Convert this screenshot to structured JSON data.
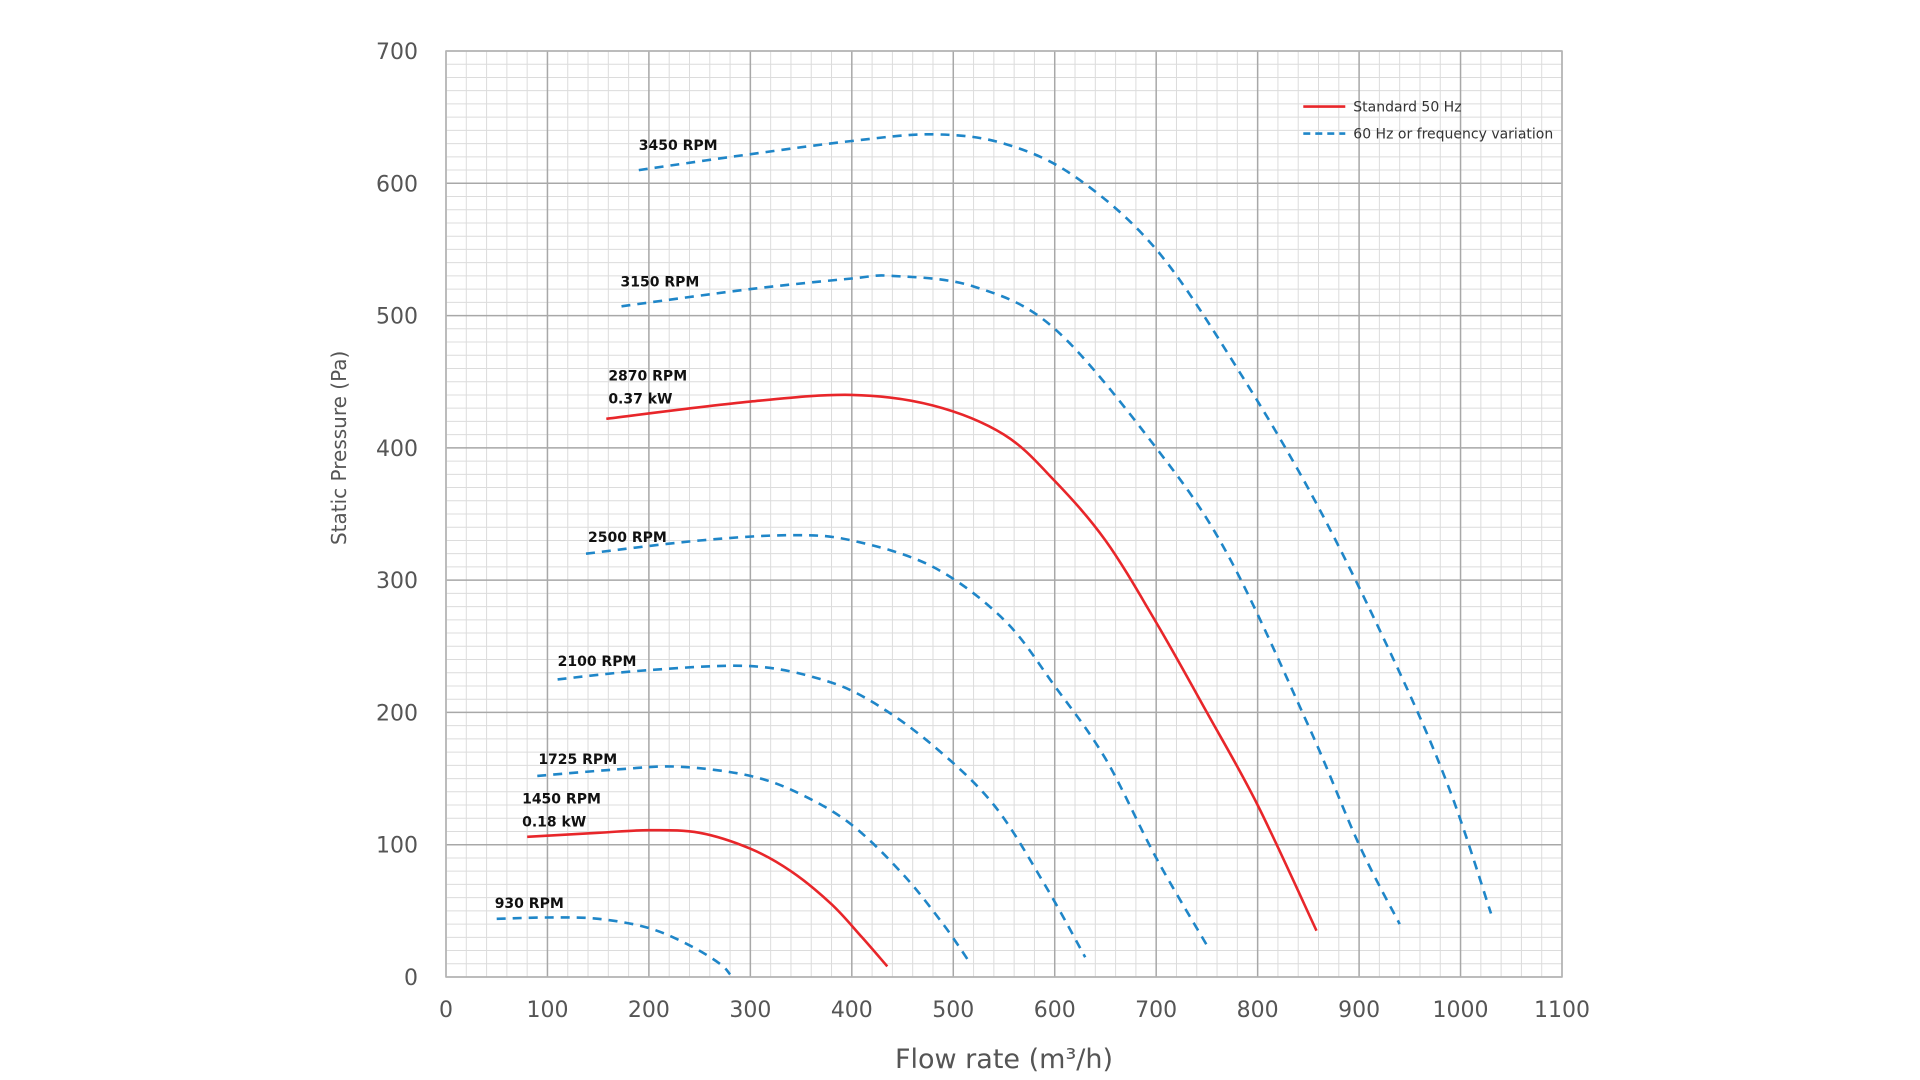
{
  "chart_data": {
    "type": "line",
    "xlabel": "Flow rate (m³/h)",
    "ylabel": "Static Pressure (Pa)",
    "xlim": [
      0,
      1100
    ],
    "ylim": [
      0,
      700
    ],
    "x_ticks": [
      "0",
      "100",
      "200",
      "300",
      "400",
      "500",
      "600",
      "700",
      "800",
      "900",
      "1000",
      "1100"
    ],
    "y_ticks": [
      "0",
      "100",
      "200",
      "300",
      "400",
      "500",
      "600",
      "700"
    ],
    "grid": true,
    "legend_position": "top-right",
    "legend": [
      {
        "label": "Standard 50 Hz",
        "style": "solid",
        "color": "#e8262a"
      },
      {
        "label": "60 Hz or frequency variation",
        "style": "dashed",
        "color": "#1f86c8"
      }
    ],
    "series": [
      {
        "name": "3450 RPM",
        "style": "dashed",
        "color": "#1f86c8",
        "points": [
          [
            190,
            610
          ],
          [
            300,
            622
          ],
          [
            400,
            632
          ],
          [
            480,
            637
          ],
          [
            550,
            630
          ],
          [
            620,
            605
          ],
          [
            700,
            550
          ],
          [
            780,
            460
          ],
          [
            860,
            355
          ],
          [
            940,
            230
          ],
          [
            990,
            140
          ],
          [
            1030,
            48
          ]
        ]
      },
      {
        "name": "3150 RPM",
        "style": "dashed",
        "color": "#1f86c8",
        "points": [
          [
            173,
            507
          ],
          [
            300,
            520
          ],
          [
            400,
            528
          ],
          [
            440,
            530
          ],
          [
            520,
            522
          ],
          [
            600,
            490
          ],
          [
            700,
            400
          ],
          [
            770,
            320
          ],
          [
            850,
            190
          ],
          [
            900,
            100
          ],
          [
            940,
            40
          ]
        ]
      },
      {
        "name": "2870 RPM",
        "style": "solid",
        "color": "#e8262a",
        "points": [
          [
            158,
            422
          ],
          [
            300,
            435
          ],
          [
            400,
            440
          ],
          [
            480,
            432
          ],
          [
            550,
            410
          ],
          [
            600,
            375
          ],
          [
            650,
            330
          ],
          [
            700,
            268
          ],
          [
            750,
            200
          ],
          [
            800,
            130
          ],
          [
            858,
            35
          ]
        ]
      },
      {
        "name": "2500 RPM",
        "style": "dashed",
        "color": "#1f86c8",
        "points": [
          [
            138,
            320
          ],
          [
            250,
            330
          ],
          [
            340,
            334
          ],
          [
            400,
            330
          ],
          [
            480,
            310
          ],
          [
            550,
            270
          ],
          [
            600,
            220
          ],
          [
            650,
            165
          ],
          [
            700,
            90
          ],
          [
            750,
            24
          ]
        ]
      },
      {
        "name": "2100 RPM",
        "style": "dashed",
        "color": "#1f86c8",
        "points": [
          [
            110,
            225
          ],
          [
            200,
            232
          ],
          [
            300,
            235
          ],
          [
            370,
            225
          ],
          [
            420,
            208
          ],
          [
            480,
            175
          ],
          [
            540,
            130
          ],
          [
            590,
            70
          ],
          [
            630,
            15
          ]
        ]
      },
      {
        "name": "1725 RPM",
        "style": "dashed",
        "color": "#1f86c8",
        "points": [
          [
            90,
            152
          ],
          [
            170,
            157
          ],
          [
            230,
            159
          ],
          [
            300,
            152
          ],
          [
            350,
            138
          ],
          [
            400,
            115
          ],
          [
            450,
            78
          ],
          [
            490,
            40
          ],
          [
            517,
            10
          ]
        ]
      },
      {
        "name": "1450 RPM",
        "style": "solid",
        "color": "#e8262a",
        "points": [
          [
            80,
            106
          ],
          [
            150,
            109
          ],
          [
            200,
            111
          ],
          [
            250,
            109
          ],
          [
            300,
            97
          ],
          [
            340,
            80
          ],
          [
            380,
            55
          ],
          [
            410,
            30
          ],
          [
            435,
            8
          ]
        ]
      },
      {
        "name": "930 RPM",
        "style": "dashed",
        "color": "#1f86c8",
        "points": [
          [
            50,
            44
          ],
          [
            100,
            45
          ],
          [
            150,
            44
          ],
          [
            200,
            37
          ],
          [
            240,
            24
          ],
          [
            270,
            10
          ],
          [
            280,
            2
          ]
        ]
      }
    ],
    "annotations": [
      {
        "lines": [
          "3450 RPM"
        ],
        "x": 190,
        "y": 625
      },
      {
        "lines": [
          "3150 RPM"
        ],
        "x": 172,
        "y": 522
      },
      {
        "lines": [
          "2870 RPM",
          "0.37 kW"
        ],
        "x": 160,
        "y": 451
      },
      {
        "lines": [
          "2500 RPM"
        ],
        "x": 140,
        "y": 329
      },
      {
        "lines": [
          "2100 RPM"
        ],
        "x": 110,
        "y": 235
      },
      {
        "lines": [
          "1725 RPM"
        ],
        "x": 91,
        "y": 161
      },
      {
        "lines": [
          "1450 RPM",
          "0.18 kW"
        ],
        "x": 75,
        "y": 131
      },
      {
        "lines": [
          "930 RPM"
        ],
        "x": 48,
        "y": 52
      }
    ]
  }
}
